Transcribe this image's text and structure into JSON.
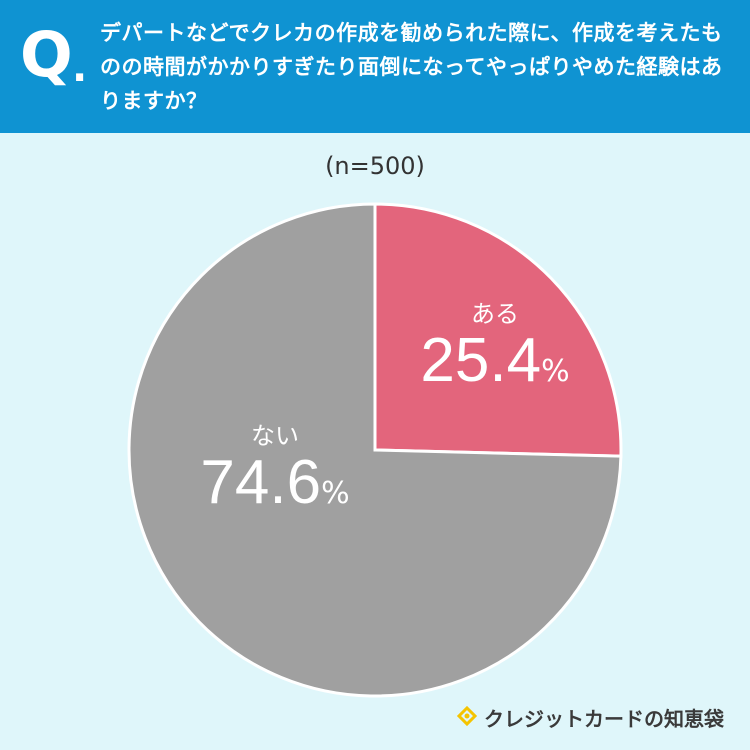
{
  "header": {
    "q_mark": "Q",
    "q_dot": ".",
    "question": "デパートなどでクレカの作成を勧められた際に、作成を考えたものの時間がかかりすぎたり面倒になってやっぱりやめた経験はありますか？"
  },
  "sample_label": "(n=500)",
  "chart_data": {
    "type": "pie",
    "title": "デパートなどでクレカの作成を勧められた際に、作成を考えたものの時間がかかりすぎたり面倒になってやっぱりやめた経験はありますか？",
    "n": 500,
    "unit": "%",
    "slices": [
      {
        "label": "ある",
        "value": 25.4,
        "display": "25.4",
        "color": "#e3657c"
      },
      {
        "label": "ない",
        "value": 74.6,
        "display": "74.6",
        "color": "#a0a0a0"
      }
    ]
  },
  "brand": {
    "name": "クレジットカードの知恵袋",
    "icon": "lightbulb-icon",
    "icon_color": "#f5c400"
  }
}
